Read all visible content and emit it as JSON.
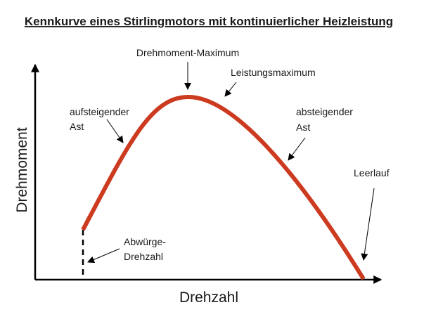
{
  "title": "Kennkurve eines Stirlingmotors mit kontinuierlicher Heizleistung",
  "axes": {
    "x_label": "Drehzahl",
    "y_label": "Drehmoment"
  },
  "annotations": {
    "torque_max": "Drehmoment-Maximum",
    "power_max": "Leistungsmaximum",
    "rising_line1": "aufsteigender",
    "rising_line2": "Ast",
    "falling_line1": "absteigender",
    "falling_line2": "Ast",
    "idle": "Leerlauf",
    "stall_line1": "Abwürge-",
    "stall_line2": "Drehzahl"
  },
  "colors": {
    "curve": "#cc3a1f",
    "axes": "#000000",
    "text": "#1a1a1a"
  }
}
